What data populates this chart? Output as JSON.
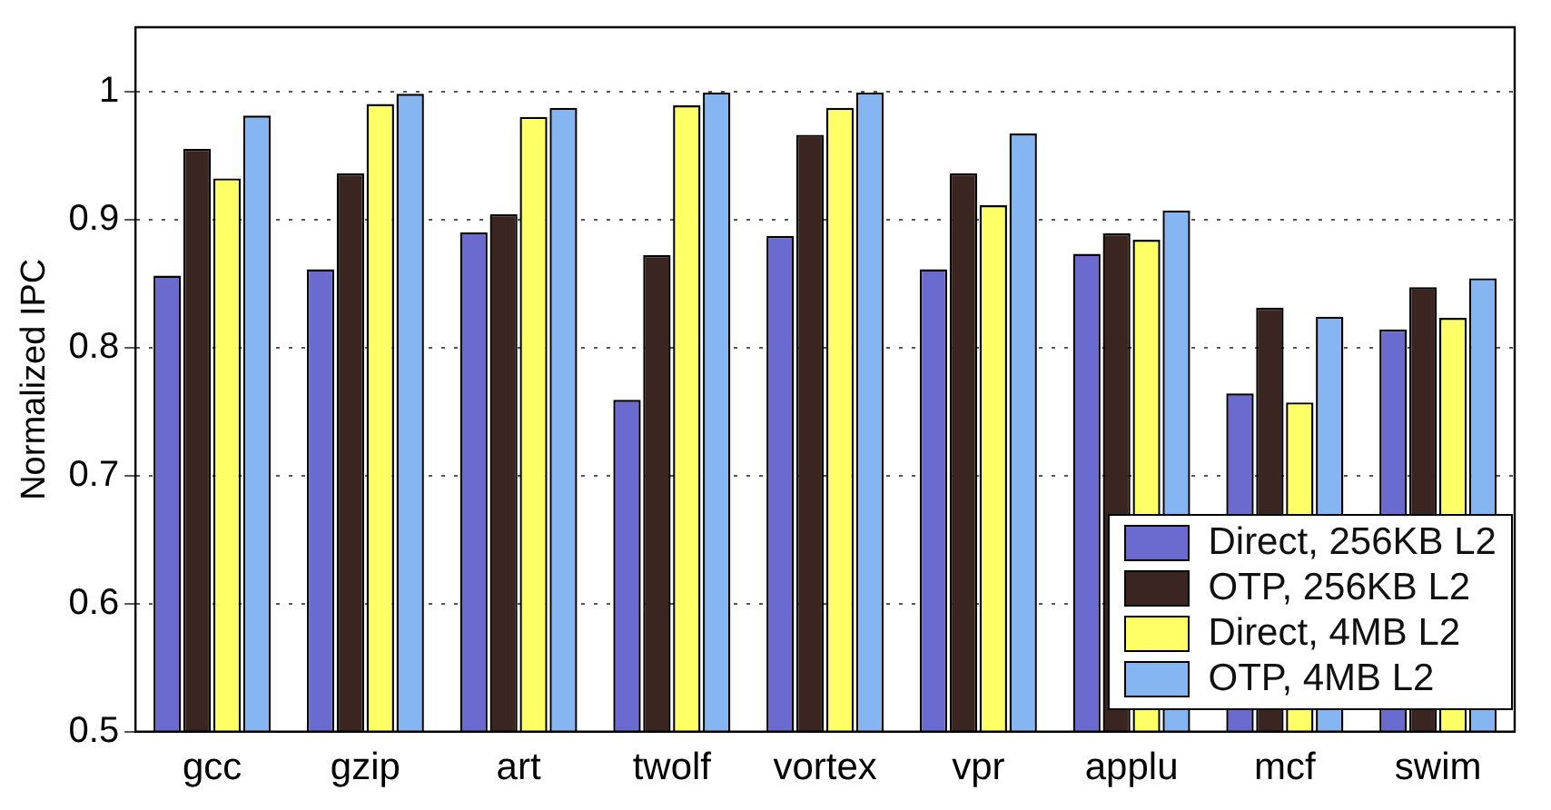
{
  "chart_data": {
    "type": "bar",
    "ylabel": "Normalized IPC",
    "categories": [
      "gcc",
      "gzip",
      "art",
      "twolf",
      "vortex",
      "vpr",
      "applu",
      "mcf",
      "swim"
    ],
    "series": [
      {
        "name": "Direct, 256KB L2",
        "color": "#6b6bcf",
        "values": [
          0.856,
          0.861,
          0.89,
          0.759,
          0.887,
          0.861,
          0.873,
          0.764,
          0.814
        ]
      },
      {
        "name": "OTP, 256KB L2",
        "color": "#3a2520",
        "values": [
          0.955,
          0.936,
          0.904,
          0.872,
          0.966,
          0.936,
          0.889,
          0.831,
          0.847
        ]
      },
      {
        "name": "Direct, 4MB L2",
        "color": "#ffff66",
        "values": [
          0.932,
          0.99,
          0.98,
          0.989,
          0.987,
          0.911,
          0.884,
          0.757,
          0.823
        ]
      },
      {
        "name": "OTP, 4MB L2",
        "color": "#85b6f2",
        "values": [
          0.981,
          0.998,
          0.987,
          0.999,
          0.999,
          0.967,
          0.907,
          0.824,
          0.854
        ]
      }
    ],
    "ylim": [
      0.5,
      1.05
    ],
    "yticks": [
      0.5,
      0.6,
      0.7,
      0.8,
      0.9,
      1
    ],
    "grid": "y",
    "legend": "bottom right"
  }
}
